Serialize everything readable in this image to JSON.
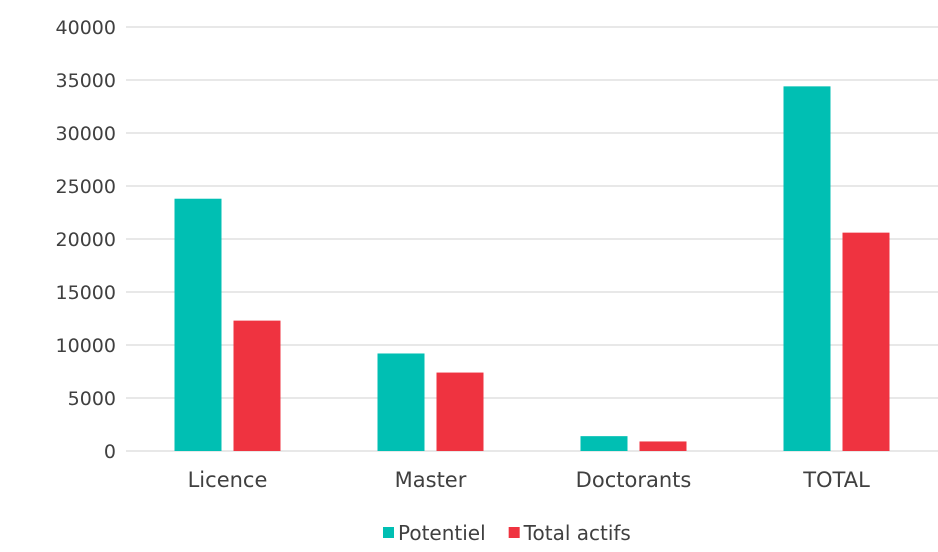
{
  "chart_data": {
    "type": "bar",
    "categories": [
      "Licence",
      "Master",
      "Doctorants",
      "TOTAL"
    ],
    "series": [
      {
        "name": "Potentiel",
        "values": [
          23800,
          9200,
          1400,
          34400
        ],
        "color": "#00bfb3"
      },
      {
        "name": "Total actifs",
        "values": [
          12300,
          7400,
          900,
          20600
        ],
        "color": "#ef3340"
      }
    ],
    "ylim": [
      0,
      40000
    ],
    "yticks": [
      0,
      5000,
      10000,
      15000,
      20000,
      25000,
      30000,
      35000,
      40000
    ],
    "ytick_labels": [
      "0",
      "5000",
      "10000",
      "15000",
      "20000",
      "25000",
      "30000",
      "35000",
      "40000"
    ],
    "grid": true,
    "legend_position": "bottom"
  }
}
